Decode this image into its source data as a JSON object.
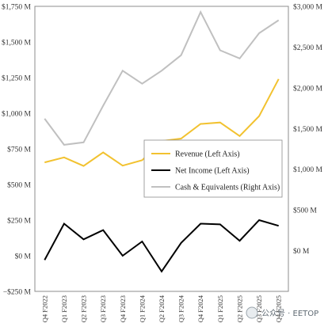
{
  "chart_data": {
    "type": "line",
    "categories": [
      "Q4 F2022",
      "Q1 F2023",
      "Q2 F2023",
      "Q3 F2023",
      "Q4 F2023",
      "Q1 F2024",
      "Q2 F2024",
      "Q3 F2024",
      "Q4 F2024",
      "Q1 F2025",
      "Q2 F2025",
      "Q3 F2025",
      "Q4 F2025"
    ],
    "left_axis": {
      "ylim": [
        -250,
        1750
      ],
      "ticks": [
        -250,
        0,
        250,
        500,
        750,
        1000,
        1250,
        1500,
        1750
      ],
      "tick_labels": [
        "−$250 M",
        "$0 M",
        "$250 M",
        "$500 M",
        "$750 M",
        "$1,000 M",
        "$1,250 M",
        "$1,500 M",
        "$1,750 M"
      ]
    },
    "right_axis": {
      "ylim": [
        -500,
        3000
      ],
      "ticks": [
        0,
        500,
        1000,
        1500,
        2000,
        2500,
        3000
      ],
      "tick_labels": [
        "$0 M",
        "$500 M",
        "$1,000 M",
        "$1,500 M",
        "$2,000 M",
        "$2,500 M",
        "$3,000 M"
      ]
    },
    "series": [
      {
        "name": "Revenue (Left Axis)",
        "axis": "left",
        "color": "#f2c230",
        "values": [
          655,
          690,
          630,
          725,
          632,
          670,
          805,
          822,
          925,
          935,
          840,
          980,
          1240
        ]
      },
      {
        "name": "Net Income (Left Axis)",
        "axis": "left",
        "color": "#000000",
        "values": [
          -30,
          225,
          115,
          180,
          0,
          100,
          -110,
          90,
          225,
          220,
          105,
          250,
          210
        ]
      },
      {
        "name": "Cash & Equivalents (Right Axis)",
        "axis": "right",
        "color": "#c0c0c0",
        "values": [
          1620,
          1300,
          1330,
          1780,
          2210,
          2050,
          2210,
          2400,
          2930,
          2460,
          2360,
          2670,
          2830
        ]
      }
    ],
    "legend": {
      "position": "center-right"
    },
    "grid": false
  },
  "watermark": {
    "text": "公众号 · EETOP"
  }
}
